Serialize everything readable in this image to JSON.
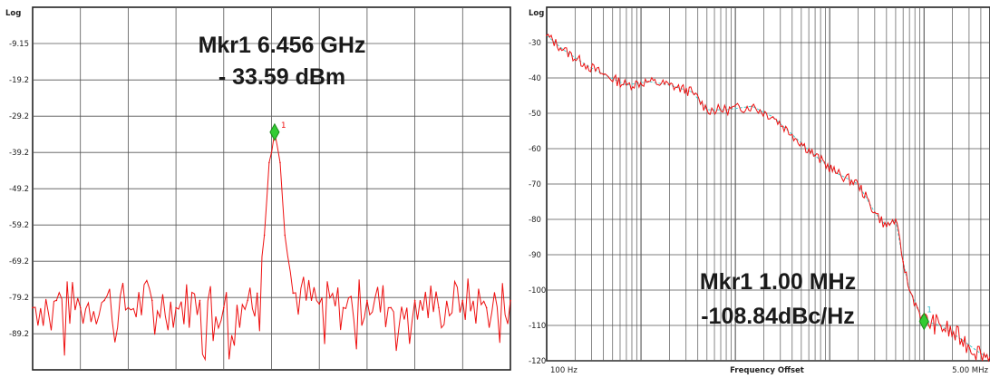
{
  "chart_data": [
    {
      "type": "line",
      "scale_label": "Log",
      "y_ticks": [
        "-9.15",
        "-19.2",
        "-29.2",
        "-39.2",
        "-49.2",
        "-59.2",
        "-69.2",
        "-79.2",
        "-89.2"
      ],
      "ylim": [
        -99.15,
        0.85
      ],
      "x_divisions": 10,
      "grid": true,
      "line_color": "#ee1111",
      "marker": {
        "number": "1",
        "x_fraction": 0.5065,
        "y": -33.59,
        "color": "#33cc33",
        "label_color": "#ee1111"
      },
      "readout": {
        "line1": "Mkr1 6.456 GHz",
        "line2": "- 33.59 dBm"
      },
      "series": [
        {
          "values": [
            {
              "x": 0.0,
              "y": -82
            },
            {
              "x": 0.05,
              "y": -80
            },
            {
              "x": 0.1,
              "y": -82
            },
            {
              "x": 0.15,
              "y": -80
            },
            {
              "x": 0.2,
              "y": -82
            },
            {
              "x": 0.25,
              "y": -80
            },
            {
              "x": 0.3,
              "y": -82
            },
            {
              "x": 0.35,
              "y": -80
            },
            {
              "x": 0.4,
              "y": -82
            },
            {
              "x": 0.45,
              "y": -80
            },
            {
              "x": 0.47,
              "y": -78
            },
            {
              "x": 0.485,
              "y": -62
            },
            {
              "x": 0.495,
              "y": -42
            },
            {
              "x": 0.5065,
              "y": -33.59
            },
            {
              "x": 0.518,
              "y": -42
            },
            {
              "x": 0.528,
              "y": -62
            },
            {
              "x": 0.545,
              "y": -78
            },
            {
              "x": 0.6,
              "y": -81
            },
            {
              "x": 0.65,
              "y": -82
            },
            {
              "x": 0.7,
              "y": -80
            },
            {
              "x": 0.75,
              "y": -82
            },
            {
              "x": 0.8,
              "y": -80
            },
            {
              "x": 0.85,
              "y": -82
            },
            {
              "x": 0.9,
              "y": -80
            },
            {
              "x": 0.95,
              "y": -82
            },
            {
              "x": 1.0,
              "y": -80
            }
          ]
        }
      ]
    },
    {
      "type": "line",
      "scale_label": "Log",
      "y_ticks": [
        "-30",
        "-40",
        "-50",
        "-60",
        "-70",
        "-80",
        "-90",
        "-100",
        "-110",
        "-120"
      ],
      "ylim": [
        -120,
        -20
      ],
      "xscale": "log",
      "xlim": [
        100,
        5000000
      ],
      "x_tick_labels": [
        "100 Hz",
        "5.00 MHz"
      ],
      "xlabel": "Frequency Offset",
      "grid": true,
      "line_color": "#ee1111",
      "trace2_color": "#44cccc",
      "marker": {
        "number": "1",
        "x": 1000000,
        "y": -108.84,
        "color": "#33cc33",
        "label_color": "#33bbcc"
      },
      "readout": {
        "line1": "Mkr1 1.00 MHz",
        "line2": "-108.84dBc/Hz"
      },
      "series": [
        {
          "values": [
            {
              "x": 100,
              "y": -28
            },
            {
              "x": 150,
              "y": -32
            },
            {
              "x": 250,
              "y": -36
            },
            {
              "x": 400,
              "y": -39
            },
            {
              "x": 700,
              "y": -42
            },
            {
              "x": 1200,
              "y": -41
            },
            {
              "x": 2000,
              "y": -42
            },
            {
              "x": 3500,
              "y": -44
            },
            {
              "x": 5000,
              "y": -49
            },
            {
              "x": 8000,
              "y": -49
            },
            {
              "x": 15000,
              "y": -48
            },
            {
              "x": 25000,
              "y": -51
            },
            {
              "x": 40000,
              "y": -56
            },
            {
              "x": 70000,
              "y": -62
            },
            {
              "x": 120000,
              "y": -67
            },
            {
              "x": 200000,
              "y": -70
            },
            {
              "x": 300000,
              "y": -78
            },
            {
              "x": 400000,
              "y": -82
            },
            {
              "x": 500000,
              "y": -80
            },
            {
              "x": 600000,
              "y": -92
            },
            {
              "x": 700000,
              "y": -100
            },
            {
              "x": 850000,
              "y": -105
            },
            {
              "x": 1000000,
              "y": -108.84
            },
            {
              "x": 1500000,
              "y": -110
            },
            {
              "x": 2500000,
              "y": -114
            },
            {
              "x": 4000000,
              "y": -118
            },
            {
              "x": 5000000,
              "y": -119
            }
          ]
        }
      ]
    }
  ]
}
